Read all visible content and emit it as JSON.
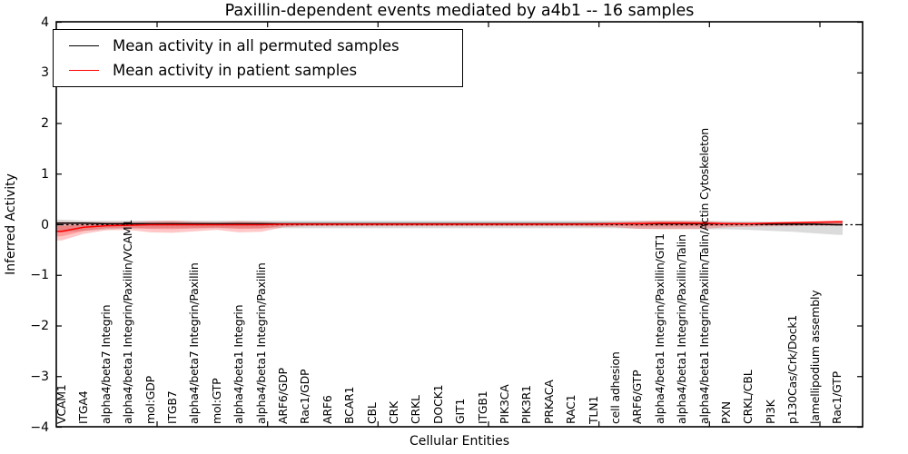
{
  "chart_data": {
    "type": "line",
    "title": "Paxillin-dependent events mediated by a4b1 -- 16 samples",
    "xlabel": "Cellular Entities",
    "ylabel": "Inferred Activity",
    "ylim": [
      -4,
      4
    ],
    "ytick_values": [
      4,
      3,
      2,
      1,
      0,
      -1,
      -2,
      -3,
      -4
    ],
    "ytick_labels": [
      "4",
      "3",
      "2",
      "1",
      "0",
      "−1",
      "−2",
      "−3",
      "−4"
    ],
    "grid": false,
    "legend_position": "upper left",
    "zero_reference_line": "dashed black",
    "categories": [
      "VCAM1",
      "ITGA4",
      "alpha4/beta7 Integrin",
      "alpha4/beta1 Integrin/Paxillin/VCAM1",
      "mol:GDP",
      "ITGB7",
      "alpha4/beta7 Integrin/Paxillin",
      "mol:GTP",
      "alpha4/beta1 Integrin",
      "alpha4/beta1 Integrin/Paxillin",
      "ARF6/GDP",
      "Rac1/GDP",
      "ARF6",
      "BCAR1",
      "CBL",
      "CRK",
      "CRKL",
      "DOCK1",
      "GIT1",
      "ITGB1",
      "PIK3CA",
      "PIK3R1",
      "PRKACA",
      "RAC1",
      "TLN1",
      "cell adhesion",
      "ARF6/GTP",
      "alpha4/beta1 Integrin/Paxillin/GIT1",
      "alpha4/beta1 Integrin/Paxillin/Talin",
      "alpha4/beta1 Integrin/Paxillin/Talin/Actin Cytoskeleton",
      "PXN",
      "CRKL/CBL",
      "PI3K",
      "p130Cas/Crk/Dock1",
      "lamellipodium assembly",
      "Rac1/GTP"
    ],
    "series": [
      {
        "name": "Mean activity in all permuted samples",
        "color": "#000000",
        "band_color": "rgba(0,0,0,0.14)",
        "values": [
          0.03,
          0.03,
          0.02,
          0.02,
          0.02,
          0.02,
          0.02,
          0.02,
          0.02,
          0.02,
          0.02,
          0.02,
          0.02,
          0.02,
          0.02,
          0.02,
          0.02,
          0.02,
          0.02,
          0.02,
          0.02,
          0.02,
          0.02,
          0.02,
          0.02,
          0.02,
          0.02,
          0.02,
          0.02,
          0.02,
          0.02,
          0.02,
          0.01,
          0.01,
          0.01,
          0.0
        ],
        "band_upper": [
          0.1,
          0.08,
          0.08,
          0.08,
          0.08,
          0.08,
          0.08,
          0.08,
          0.08,
          0.08,
          0.08,
          0.08,
          0.08,
          0.08,
          0.08,
          0.08,
          0.08,
          0.08,
          0.08,
          0.08,
          0.08,
          0.08,
          0.08,
          0.08,
          0.08,
          0.08,
          0.08,
          0.08,
          0.08,
          0.08,
          0.07,
          0.07,
          0.06,
          0.06,
          0.05,
          0.05
        ],
        "band_lower": [
          -0.15,
          -0.12,
          -0.09,
          -0.08,
          -0.07,
          -0.07,
          -0.07,
          -0.07,
          -0.07,
          -0.07,
          -0.07,
          -0.07,
          -0.07,
          -0.07,
          -0.07,
          -0.07,
          -0.07,
          -0.07,
          -0.07,
          -0.07,
          -0.07,
          -0.07,
          -0.07,
          -0.07,
          -0.07,
          -0.07,
          -0.08,
          -0.08,
          -0.08,
          -0.09,
          -0.09,
          -0.1,
          -0.12,
          -0.14,
          -0.17,
          -0.2
        ]
      },
      {
        "name": "Mean activity in patient samples",
        "color": "#ff0000",
        "band_color": "rgba(255,0,0,0.22)",
        "values": [
          -0.13,
          -0.05,
          -0.02,
          -0.01,
          0.0,
          0.0,
          0.0,
          0.0,
          0.0,
          0.0,
          0.01,
          0.01,
          0.01,
          0.01,
          0.01,
          0.01,
          0.01,
          0.01,
          0.01,
          0.01,
          0.01,
          0.01,
          0.01,
          0.01,
          0.01,
          0.02,
          0.02,
          0.03,
          0.03,
          0.03,
          0.02,
          0.02,
          0.03,
          0.04,
          0.05,
          0.06
        ],
        "band_upper": [
          0.06,
          0.05,
          0.05,
          0.05,
          0.07,
          0.08,
          0.06,
          0.05,
          0.07,
          0.06,
          0.03,
          0.03,
          0.03,
          0.03,
          0.03,
          0.03,
          0.03,
          0.03,
          0.03,
          0.03,
          0.03,
          0.03,
          0.03,
          0.03,
          0.04,
          0.05,
          0.07,
          0.08,
          0.08,
          0.07,
          0.05,
          0.04,
          0.05,
          0.06,
          0.07,
          0.08
        ],
        "band_lower": [
          -0.31,
          -0.18,
          -0.11,
          -0.1,
          -0.15,
          -0.16,
          -0.13,
          -0.1,
          -0.15,
          -0.14,
          -0.05,
          -0.03,
          -0.03,
          -0.03,
          -0.03,
          -0.03,
          -0.03,
          -0.03,
          -0.03,
          -0.03,
          -0.03,
          -0.03,
          -0.03,
          -0.03,
          -0.04,
          -0.05,
          -0.08,
          -0.09,
          -0.09,
          -0.08,
          -0.05,
          -0.04,
          -0.03,
          -0.03,
          -0.02,
          -0.02
        ]
      }
    ]
  }
}
